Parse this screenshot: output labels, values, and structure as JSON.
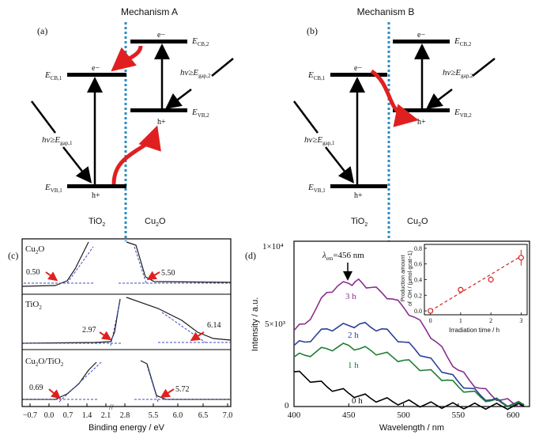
{
  "colors": {
    "divider": "#2b8cc4",
    "arrow_red": "#e02020",
    "band": "#000000",
    "curve_dark": "#1a1a1a",
    "fit_blue": "#3b4cc0",
    "purple": "#8b2d8e",
    "blue": "#2a3f9a",
    "green": "#1e7d32",
    "black": "#000000",
    "inset_red": "#d62020"
  },
  "panel_a": {
    "title": "Mechanism A",
    "tag": "(a)",
    "left_label": "TiO2",
    "right_label": "Cu2O",
    "ecb1": "ECB,1",
    "evb1": "EVB,1",
    "ecb2": "ECB,2",
    "evb2": "EVB,2",
    "electron": "e−",
    "hole": "h+",
    "hv1": "hν≥Egap,1",
    "hv2": "hν≥Egap,2"
  },
  "panel_b": {
    "title": "Mechanism B",
    "tag": "(b)",
    "left_label": "TiO2",
    "right_label": "Cu2O",
    "ecb1": "ECB,1",
    "evb1": "EVB,1",
    "ecb2": "ECB,2",
    "evb2": "EVB,2",
    "electron": "e−",
    "hole": "h+",
    "hv1": "hν≥Egap,1",
    "hv2": "hν≥Egap,2"
  },
  "panel_c": {
    "tag": "(c)",
    "xlabel": "Binding energy / eV",
    "xticks": [
      "−0.7",
      "0.0",
      "0.7",
      "1.4",
      "2.1",
      "2.8",
      "5.5",
      "6.0",
      "6.5",
      "7.0"
    ],
    "rows": [
      {
        "label": "Cu2O",
        "left_value": "0.50",
        "right_value": "5.50"
      },
      {
        "label": "TiO2",
        "left_value": "2.97",
        "right_value": "6.14"
      },
      {
        "label": "Cu2O/TiO2",
        "left_value": "0.69",
        "right_value": "5.72"
      }
    ]
  },
  "panel_d": {
    "tag": "(d)",
    "ylabel": "Intensity / a.u.",
    "xlabel": "Wavelength / nm",
    "ymax_label": "1×10⁴",
    "ymid_label": "5×10³",
    "y0_label": "0",
    "xticks": [
      "400",
      "450",
      "500",
      "550",
      "600"
    ],
    "peak_annotation": "λem=456 nm",
    "series_labels": [
      "3 h",
      "2 h",
      "1 h",
      "0 h"
    ],
    "inset": {
      "ylabel_line1": "Production amount",
      "ylabel_line2": "of ·OH / (μmol·gcat−1)",
      "xlabel": "Irradiation time / h",
      "xticks": [
        "0",
        "1",
        "2",
        "3"
      ],
      "yticks": [
        "0.0",
        "0.2",
        "0.4",
        "0.6",
        "0.8"
      ]
    }
  },
  "chart_data": {
    "type": "line",
    "title": "",
    "xlabel": "Wavelength / nm",
    "ylabel": "Intensity / a.u.",
    "xlim": [
      400,
      615
    ],
    "ylim": [
      0,
      10000
    ],
    "series": [
      {
        "name": "3 h",
        "x": [
          400,
          410,
          420,
          430,
          440,
          450,
          456,
          462,
          470,
          480,
          490,
          500,
          510,
          520,
          530,
          540,
          550,
          560,
          570,
          580,
          590,
          600,
          610
        ],
        "values": [
          4600,
          5000,
          5900,
          6900,
          7300,
          7450,
          7560,
          7500,
          7200,
          6900,
          6500,
          6000,
          5400,
          4700,
          3900,
          3000,
          2200,
          1600,
          1100,
          700,
          400,
          200,
          150
        ]
      },
      {
        "name": "2 h",
        "x": [
          400,
          410,
          420,
          430,
          440,
          450,
          460,
          470,
          480,
          490,
          500,
          510,
          520,
          530,
          540,
          550,
          560,
          570,
          580,
          590,
          600,
          610
        ],
        "values": [
          3700,
          3900,
          4300,
          4700,
          4800,
          4900,
          5000,
          4800,
          4700,
          4300,
          3900,
          3500,
          3000,
          2500,
          2000,
          1500,
          1100,
          700,
          400,
          250,
          150,
          100
        ]
      },
      {
        "name": "1 h",
        "x": [
          400,
          410,
          420,
          430,
          440,
          450,
          460,
          470,
          480,
          490,
          500,
          510,
          520,
          530,
          540,
          550,
          560,
          570,
          580,
          590,
          600,
          610
        ],
        "values": [
          3000,
          3100,
          3300,
          3500,
          3600,
          3700,
          3500,
          3400,
          3200,
          3000,
          2800,
          2500,
          2200,
          1900,
          1600,
          1200,
          900,
          600,
          350,
          200,
          120,
          80
        ]
      },
      {
        "name": "0 h",
        "x": [
          400,
          410,
          420,
          430,
          440,
          450,
          460,
          470,
          480,
          490,
          500,
          510,
          520,
          530,
          540,
          550,
          560,
          570,
          580,
          590,
          600,
          610
        ],
        "values": [
          2100,
          1800,
          1500,
          1200,
          1000,
          800,
          650,
          500,
          400,
          300,
          250,
          180,
          120,
          80,
          60,
          40,
          30,
          20,
          20,
          10,
          10,
          10
        ]
      }
    ],
    "inset": {
      "type": "scatter",
      "xlabel": "Irradiation time / h",
      "x": [
        0,
        1,
        2,
        3
      ],
      "values": [
        0.0,
        0.27,
        0.4,
        0.68
      ],
      "errors": [
        0.02,
        0.03,
        0.04,
        0.1
      ],
      "xlim": [
        -0.2,
        3.2
      ],
      "ylim": [
        -0.05,
        0.85
      ]
    }
  }
}
